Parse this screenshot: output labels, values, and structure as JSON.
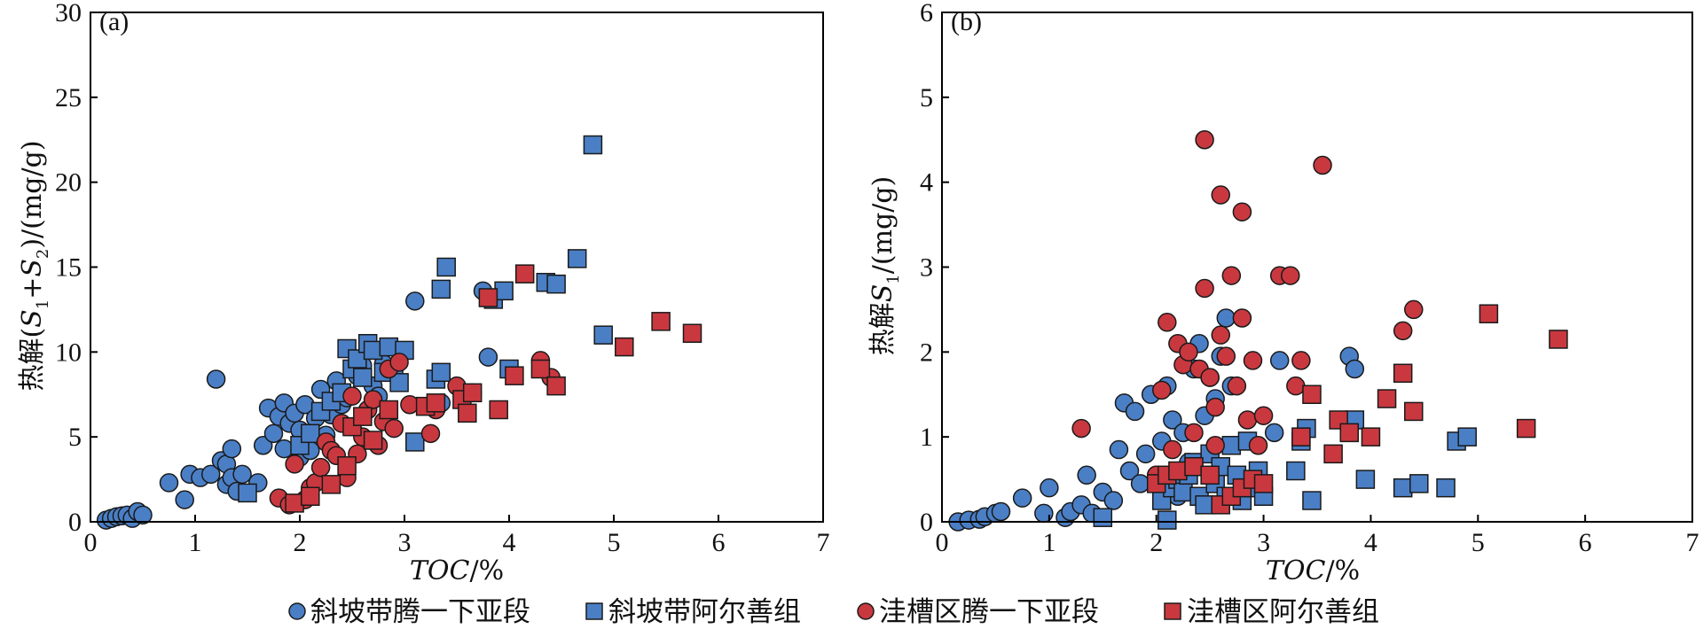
{
  "colors": {
    "blue": "#4a7fc6",
    "red": "#c9383f",
    "stroke": "#1a1a1a"
  },
  "legend": [
    {
      "marker": "circle",
      "color": "blue",
      "label": "斜坡带腾一下亚段"
    },
    {
      "marker": "square",
      "color": "blue",
      "label": "斜坡带阿尔善组"
    },
    {
      "marker": "circle",
      "color": "red",
      "label": "洼槽区腾一下亚段"
    },
    {
      "marker": "square",
      "color": "red",
      "label": "洼槽区阿尔善组"
    }
  ],
  "chart_data": [
    {
      "type": "scatter",
      "panel_label": "(a)",
      "xlabel": "TOC/%",
      "ylabel": "热解(S1+S2)/(mg/g)",
      "xlim": [
        0,
        7
      ],
      "ylim": [
        0,
        30
      ],
      "xticks": [
        0,
        1,
        2,
        3,
        4,
        5,
        6,
        7
      ],
      "yticks": [
        0,
        5,
        10,
        15,
        20,
        25,
        30
      ],
      "series": [
        {
          "name": "斜坡带腾一下亚段",
          "marker": "circle",
          "color": "blue",
          "points": [
            [
              0.15,
              0.1
            ],
            [
              0.2,
              0.2
            ],
            [
              0.25,
              0.3
            ],
            [
              0.3,
              0.35
            ],
            [
              0.35,
              0.4
            ],
            [
              0.4,
              0.2
            ],
            [
              0.45,
              0.6
            ],
            [
              0.5,
              0.4
            ],
            [
              0.75,
              2.3
            ],
            [
              0.9,
              1.3
            ],
            [
              0.95,
              2.8
            ],
            [
              1.05,
              2.6
            ],
            [
              1.15,
              2.8
            ],
            [
              1.2,
              8.4
            ],
            [
              1.25,
              3.6
            ],
            [
              1.3,
              2.2
            ],
            [
              1.3,
              3.4
            ],
            [
              1.35,
              2.6
            ],
            [
              1.35,
              4.3
            ],
            [
              1.4,
              1.8
            ],
            [
              1.45,
              2.8
            ],
            [
              1.6,
              2.3
            ],
            [
              1.65,
              4.5
            ],
            [
              1.7,
              6.7
            ],
            [
              1.75,
              5.2
            ],
            [
              1.8,
              6.2
            ],
            [
              1.85,
              4.3
            ],
            [
              1.85,
              7.0
            ],
            [
              1.9,
              5.8
            ],
            [
              1.95,
              6.4
            ],
            [
              2.0,
              3.8
            ],
            [
              2.0,
              5.4
            ],
            [
              2.05,
              6.9
            ],
            [
              2.1,
              4.2
            ],
            [
              2.15,
              6.1
            ],
            [
              2.2,
              7.8
            ],
            [
              2.25,
              5.1
            ],
            [
              2.3,
              6.3
            ],
            [
              2.35,
              8.3
            ],
            [
              2.4,
              6.9
            ],
            [
              2.45,
              7.3
            ],
            [
              2.5,
              5.6
            ],
            [
              2.55,
              8.6
            ],
            [
              2.6,
              9.2
            ],
            [
              2.7,
              8.0
            ],
            [
              2.75,
              7.4
            ],
            [
              2.8,
              9.3
            ],
            [
              2.9,
              8.9
            ],
            [
              3.1,
              13.0
            ],
            [
              3.35,
              7.0
            ],
            [
              3.75,
              13.6
            ],
            [
              3.8,
              9.7
            ]
          ]
        },
        {
          "name": "斜坡带阿尔善组",
          "marker": "square",
          "color": "blue",
          "points": [
            [
              1.5,
              1.7
            ],
            [
              2.0,
              4.5
            ],
            [
              2.1,
              5.2
            ],
            [
              2.2,
              6.5
            ],
            [
              2.3,
              7.1
            ],
            [
              2.4,
              7.6
            ],
            [
              2.45,
              10.2
            ],
            [
              2.5,
              9.0
            ],
            [
              2.55,
              9.6
            ],
            [
              2.6,
              8.5
            ],
            [
              2.65,
              10.5
            ],
            [
              2.7,
              10.1
            ],
            [
              2.8,
              8.8
            ],
            [
              2.85,
              10.3
            ],
            [
              2.95,
              8.2
            ],
            [
              3.0,
              10.1
            ],
            [
              3.1,
              4.7
            ],
            [
              3.3,
              8.4
            ],
            [
              3.35,
              8.8
            ],
            [
              3.35,
              13.7
            ],
            [
              3.4,
              15.0
            ],
            [
              3.85,
              13.1
            ],
            [
              3.95,
              13.6
            ],
            [
              4.0,
              9.0
            ],
            [
              4.35,
              14.1
            ],
            [
              4.45,
              14.0
            ],
            [
              4.65,
              15.5
            ],
            [
              4.8,
              22.2
            ],
            [
              4.9,
              11.0
            ]
          ]
        },
        {
          "name": "洼槽区腾一下亚段",
          "marker": "circle",
          "color": "red",
          "points": [
            [
              1.8,
              1.4
            ],
            [
              1.9,
              1.0
            ],
            [
              1.95,
              3.4
            ],
            [
              2.05,
              1.3
            ],
            [
              2.1,
              2.0
            ],
            [
              2.15,
              2.3
            ],
            [
              2.2,
              3.2
            ],
            [
              2.25,
              4.7
            ],
            [
              2.3,
              4.2
            ],
            [
              2.35,
              3.9
            ],
            [
              2.4,
              5.8
            ],
            [
              2.45,
              2.6
            ],
            [
              2.5,
              7.4
            ],
            [
              2.55,
              4.0
            ],
            [
              2.6,
              5.0
            ],
            [
              2.65,
              6.6
            ],
            [
              2.7,
              7.2
            ],
            [
              2.75,
              4.5
            ],
            [
              2.8,
              5.9
            ],
            [
              2.85,
              9.0
            ],
            [
              2.9,
              5.5
            ],
            [
              2.95,
              9.4
            ],
            [
              3.05,
              6.9
            ],
            [
              3.25,
              5.2
            ],
            [
              3.3,
              6.6
            ],
            [
              3.5,
              8.0
            ],
            [
              3.65,
              7.6
            ],
            [
              4.3,
              9.5
            ],
            [
              4.4,
              8.5
            ]
          ]
        },
        {
          "name": "洼槽区阿尔善组",
          "marker": "square",
          "color": "red",
          "points": [
            [
              1.95,
              1.1
            ],
            [
              2.1,
              1.5
            ],
            [
              2.3,
              2.2
            ],
            [
              2.45,
              3.3
            ],
            [
              2.5,
              5.6
            ],
            [
              2.6,
              6.2
            ],
            [
              2.7,
              4.8
            ],
            [
              2.85,
              6.6
            ],
            [
              3.2,
              6.8
            ],
            [
              3.3,
              7.0
            ],
            [
              3.55,
              7.2
            ],
            [
              3.6,
              6.4
            ],
            [
              3.65,
              7.6
            ],
            [
              3.8,
              13.2
            ],
            [
              3.9,
              6.6
            ],
            [
              4.05,
              8.6
            ],
            [
              4.15,
              14.6
            ],
            [
              4.3,
              9.0
            ],
            [
              4.45,
              8.0
            ],
            [
              5.1,
              10.3
            ],
            [
              5.45,
              11.8
            ],
            [
              5.75,
              11.1
            ]
          ]
        }
      ]
    },
    {
      "type": "scatter",
      "panel_label": "(b)",
      "xlabel": "TOC/%",
      "ylabel": "热解S1/(mg/g)",
      "xlim": [
        0,
        7
      ],
      "ylim": [
        0,
        6
      ],
      "xticks": [
        0,
        1,
        2,
        3,
        4,
        5,
        6,
        7
      ],
      "yticks": [
        0,
        1,
        2,
        3,
        4,
        5,
        6
      ],
      "series": [
        {
          "name": "斜坡带腾一下亚段",
          "marker": "circle",
          "color": "blue",
          "points": [
            [
              0.15,
              0.0
            ],
            [
              0.25,
              0.02
            ],
            [
              0.35,
              0.03
            ],
            [
              0.4,
              0.06
            ],
            [
              0.5,
              0.1
            ],
            [
              0.55,
              0.12
            ],
            [
              0.75,
              0.28
            ],
            [
              0.95,
              0.1
            ],
            [
              1.0,
              0.4
            ],
            [
              1.15,
              0.05
            ],
            [
              1.2,
              0.12
            ],
            [
              1.3,
              0.2
            ],
            [
              1.35,
              0.55
            ],
            [
              1.4,
              0.1
            ],
            [
              1.5,
              0.35
            ],
            [
              1.6,
              0.25
            ],
            [
              1.65,
              0.85
            ],
            [
              1.7,
              1.4
            ],
            [
              1.75,
              0.6
            ],
            [
              1.8,
              1.3
            ],
            [
              1.85,
              0.45
            ],
            [
              1.9,
              0.8
            ],
            [
              1.95,
              1.5
            ],
            [
              2.0,
              0.55
            ],
            [
              2.05,
              0.95
            ],
            [
              2.1,
              1.6
            ],
            [
              2.15,
              1.2
            ],
            [
              2.2,
              0.3
            ],
            [
              2.25,
              1.05
            ],
            [
              2.3,
              0.7
            ],
            [
              2.35,
              1.8
            ],
            [
              2.4,
              2.1
            ],
            [
              2.45,
              1.25
            ],
            [
              2.5,
              1.7
            ],
            [
              2.55,
              1.45
            ],
            [
              2.6,
              1.95
            ],
            [
              2.65,
              2.4
            ],
            [
              2.7,
              1.6
            ],
            [
              3.1,
              1.05
            ],
            [
              3.15,
              1.9
            ],
            [
              3.8,
              1.95
            ],
            [
              3.85,
              1.8
            ]
          ]
        },
        {
          "name": "斜坡带阿尔善组",
          "marker": "square",
          "color": "blue",
          "points": [
            [
              1.5,
              0.05
            ],
            [
              2.05,
              0.25
            ],
            [
              2.1,
              0.02
            ],
            [
              2.15,
              0.4
            ],
            [
              2.2,
              0.5
            ],
            [
              2.25,
              0.35
            ],
            [
              2.3,
              0.55
            ],
            [
              2.35,
              0.7
            ],
            [
              2.4,
              0.3
            ],
            [
              2.45,
              0.2
            ],
            [
              2.5,
              0.8
            ],
            [
              2.55,
              0.45
            ],
            [
              2.6,
              0.65
            ],
            [
              2.65,
              0.3
            ],
            [
              2.7,
              0.9
            ],
            [
              2.75,
              0.55
            ],
            [
              2.8,
              0.25
            ],
            [
              2.85,
              0.95
            ],
            [
              2.9,
              0.4
            ],
            [
              2.95,
              0.6
            ],
            [
              3.0,
              0.3
            ],
            [
              3.3,
              0.6
            ],
            [
              3.35,
              0.95
            ],
            [
              3.4,
              1.1
            ],
            [
              3.45,
              0.25
            ],
            [
              3.85,
              1.2
            ],
            [
              3.95,
              0.5
            ],
            [
              4.3,
              0.4
            ],
            [
              4.45,
              0.45
            ],
            [
              4.7,
              0.4
            ],
            [
              4.8,
              0.95
            ],
            [
              4.9,
              1.0
            ]
          ]
        },
        {
          "name": "洼槽区腾一下亚段",
          "marker": "circle",
          "color": "red",
          "points": [
            [
              1.3,
              1.1
            ],
            [
              2.0,
              0.55
            ],
            [
              2.05,
              1.55
            ],
            [
              2.1,
              2.35
            ],
            [
              2.15,
              0.85
            ],
            [
              2.2,
              2.1
            ],
            [
              2.25,
              1.85
            ],
            [
              2.3,
              2.0
            ],
            [
              2.35,
              1.05
            ],
            [
              2.4,
              1.8
            ],
            [
              2.45,
              2.75
            ],
            [
              2.45,
              4.5
            ],
            [
              2.5,
              1.7
            ],
            [
              2.55,
              1.35
            ],
            [
              2.55,
              0.9
            ],
            [
              2.6,
              3.85
            ],
            [
              2.6,
              2.2
            ],
            [
              2.65,
              1.95
            ],
            [
              2.7,
              2.9
            ],
            [
              2.75,
              1.6
            ],
            [
              2.8,
              3.65
            ],
            [
              2.8,
              2.4
            ],
            [
              2.85,
              1.2
            ],
            [
              2.9,
              1.9
            ],
            [
              2.95,
              0.9
            ],
            [
              3.0,
              1.25
            ],
            [
              3.15,
              2.9
            ],
            [
              3.25,
              2.9
            ],
            [
              3.3,
              1.6
            ],
            [
              3.35,
              1.9
            ],
            [
              3.55,
              4.2
            ],
            [
              4.3,
              2.25
            ],
            [
              4.4,
              2.5
            ]
          ]
        },
        {
          "name": "洼槽区阿尔善组",
          "marker": "square",
          "color": "red",
          "points": [
            [
              2.0,
              0.45
            ],
            [
              2.1,
              0.55
            ],
            [
              2.2,
              0.6
            ],
            [
              2.35,
              0.65
            ],
            [
              2.5,
              0.55
            ],
            [
              2.6,
              0.2
            ],
            [
              2.7,
              0.3
            ],
            [
              2.8,
              0.4
            ],
            [
              2.9,
              0.5
            ],
            [
              3.0,
              0.45
            ],
            [
              3.35,
              1.0
            ],
            [
              3.45,
              1.5
            ],
            [
              3.65,
              0.8
            ],
            [
              3.7,
              1.2
            ],
            [
              3.8,
              1.05
            ],
            [
              4.0,
              1.0
            ],
            [
              4.15,
              1.45
            ],
            [
              4.3,
              1.75
            ],
            [
              4.4,
              1.3
            ],
            [
              5.1,
              2.45
            ],
            [
              5.45,
              1.1
            ],
            [
              5.75,
              2.15
            ]
          ]
        }
      ]
    }
  ]
}
